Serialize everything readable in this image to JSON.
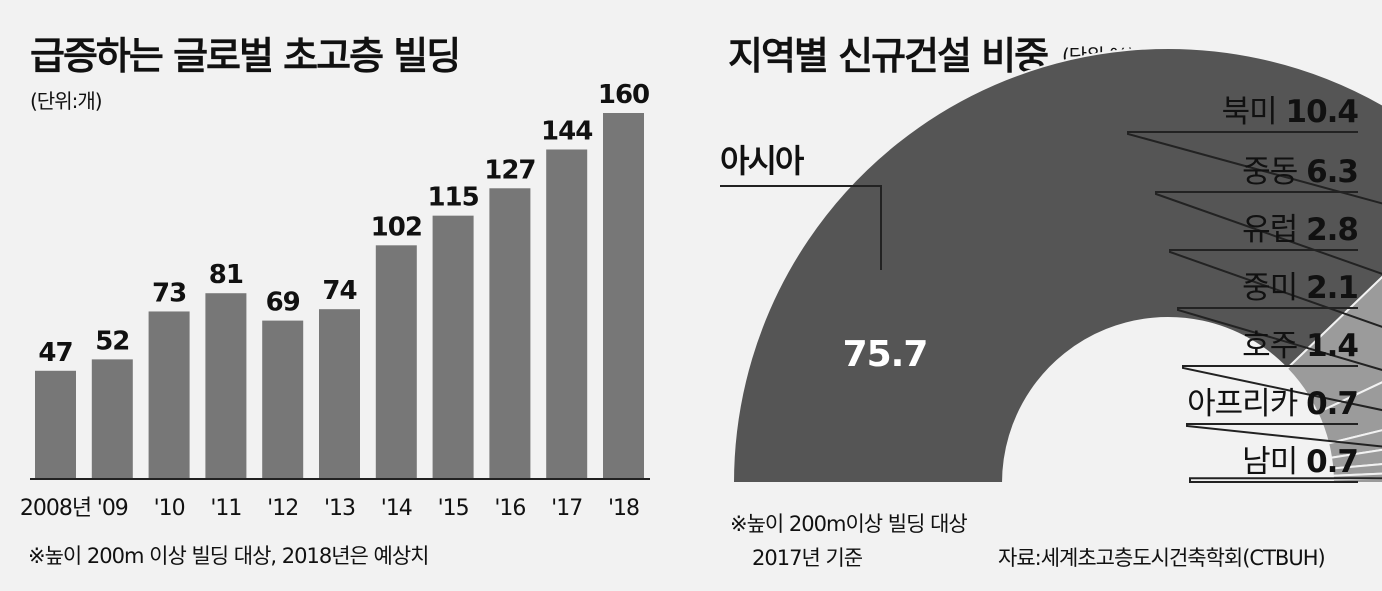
{
  "left_panel": {
    "title": "급증하는 글로벌 초고층 빌딩",
    "unit": "(단위:개)",
    "footnote": "※높이 200m 이상 빌딩 대상, 2018년은 예상치"
  },
  "right_panel": {
    "title": "지역별 신규건설 비중",
    "unit": "(단위:%)",
    "footnote_line1": "※높이 200m이상 빌딩 대상",
    "footnote_line2": "2017년 기준",
    "source": "자료:세계초고층도시건축학회(CTBUH)"
  },
  "colors": {
    "background": "#f2f2f2",
    "bar": "#777777",
    "asia": "#555555",
    "others": "#9b9b9b",
    "text": "#111111"
  },
  "chart_data": [
    {
      "type": "bar",
      "title": "급증하는 글로벌 초고층 빌딩",
      "unit": "(단위:개)",
      "categories": [
        "2008년",
        "'09",
        "'10",
        "'11",
        "'12",
        "'13",
        "'14",
        "'15",
        "'16",
        "'17",
        "'18"
      ],
      "values": [
        47,
        52,
        73,
        81,
        69,
        74,
        102,
        115,
        127,
        144,
        160
      ],
      "ylim": [
        0,
        160
      ],
      "grid": false,
      "data_labels": true
    },
    {
      "type": "pie",
      "subtype": "half-donut",
      "title": "지역별 신규건설 비중",
      "unit": "(단위:%)",
      "slices": [
        {
          "label": "아시아",
          "value": 75.7
        },
        {
          "label": "북미",
          "value": 10.4
        },
        {
          "label": "중동",
          "value": 6.3
        },
        {
          "label": "유럽",
          "value": 2.8
        },
        {
          "label": "중미",
          "value": 2.1
        },
        {
          "label": "호주",
          "value": 1.4
        },
        {
          "label": "아프리카",
          "value": 0.7
        },
        {
          "label": "남미",
          "value": 0.7
        }
      ]
    }
  ]
}
